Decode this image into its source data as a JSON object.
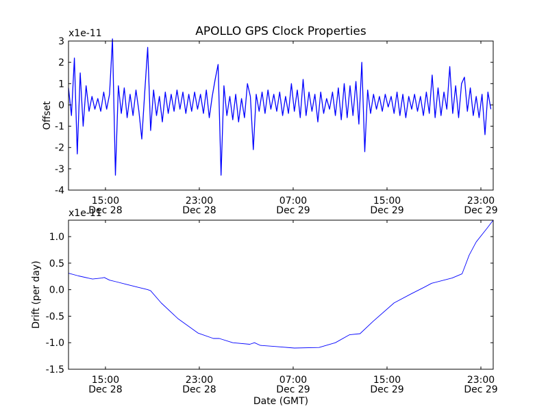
{
  "chart_data": [
    {
      "type": "line",
      "title": "APOLLO GPS Clock Properties",
      "ylabel": "Offset",
      "xlabel": "",
      "y_multiplier_label": "x1e-11",
      "xlim_hours_from_dec28": [
        11.85,
        48.05
      ],
      "ylim": [
        -4,
        3
      ],
      "yticks": [
        -4,
        -3,
        -2,
        -1,
        0,
        1,
        2,
        3
      ],
      "ytick_labels": [
        "-4",
        "-3",
        "-2",
        "-1",
        "0",
        "1",
        "2",
        "3"
      ],
      "xticks_hours": [
        15,
        23,
        31,
        39,
        47
      ],
      "xtick_labels": [
        [
          "15:00",
          "Dec 28"
        ],
        [
          "23:00",
          "Dec 28"
        ],
        [
          "07:00",
          "Dec 29"
        ],
        [
          "15:00",
          "Dec 29"
        ],
        [
          "23:00",
          "Dec 29"
        ]
      ],
      "color": "#0000ff",
      "series": [
        {
          "name": "Offset",
          "x_start_hours": 11.85,
          "x_step_hours": 0.25,
          "values": [
            0.8,
            -0.5,
            2.2,
            -2.3,
            1.5,
            -1.0,
            0.9,
            -0.3,
            0.4,
            -0.2,
            0.3,
            -0.3,
            0.6,
            -0.2,
            0.5,
            3.1,
            -3.3,
            0.9,
            -0.4,
            0.8,
            -0.6,
            0.5,
            -0.5,
            0.7,
            -0.3,
            -1.6,
            0.6,
            2.7,
            -1.2,
            0.7,
            -0.5,
            0.4,
            -0.8,
            0.6,
            -0.4,
            0.5,
            -0.3,
            0.7,
            -0.2,
            0.6,
            -0.4,
            0.5,
            -0.3,
            0.6,
            -0.2,
            0.5,
            -0.4,
            0.7,
            -0.6,
            0.4,
            1.2,
            1.9,
            -3.3,
            0.9,
            -0.5,
            0.4,
            -0.7,
            0.5,
            -0.8,
            0.3,
            -0.6,
            1.0,
            0.4,
            -2.1,
            0.5,
            -0.3,
            0.6,
            -0.4,
            0.7,
            -0.2,
            0.5,
            -0.3,
            0.6,
            -0.5,
            0.4,
            -0.4,
            1.0,
            -0.3,
            0.7,
            -0.6,
            1.2,
            -0.5,
            0.6,
            -0.3,
            0.5,
            -0.8,
            0.6,
            -0.4,
            0.3,
            -0.2,
            0.6,
            -0.5,
            0.8,
            -0.7,
            1.0,
            -0.6,
            0.9,
            -0.5,
            1.1,
            -0.9,
            2.0,
            -2.2,
            0.7,
            -0.4,
            0.5,
            -0.2,
            0.4,
            -0.3,
            0.5,
            -0.1,
            0.4,
            -0.4,
            0.6,
            -0.5,
            0.5,
            -0.6,
            0.4,
            -0.2,
            0.5,
            -0.3,
            0.4,
            -0.5,
            0.6,
            -0.4,
            1.4,
            -0.6,
            0.8,
            -0.5,
            0.6,
            -0.2,
            1.8,
            -0.4,
            0.9,
            -0.6,
            1.0,
            1.3,
            -0.3,
            0.8,
            -0.5,
            0.4,
            -0.6,
            0.5,
            -1.4,
            0.6,
            -0.2
          ]
        }
      ]
    },
    {
      "type": "line",
      "title": "",
      "ylabel": "Drift (per day)",
      "xlabel": "Date (GMT)",
      "y_multiplier_label": "x1e-11",
      "xlim_hours_from_dec28": [
        11.85,
        48.05
      ],
      "ylim": [
        -1.5,
        1.31
      ],
      "yticks": [
        -1.5,
        -1.0,
        -0.5,
        0.0,
        0.5,
        1.0
      ],
      "ytick_labels": [
        "-1.5",
        "-1.0",
        "-0.5",
        "0.0",
        "0.5",
        "1.0"
      ],
      "xticks_hours": [
        15,
        23,
        31,
        39,
        47
      ],
      "xtick_labels": [
        [
          "15:00",
          "Dec 28"
        ],
        [
          "23:00",
          "Dec 28"
        ],
        [
          "07:00",
          "Dec 29"
        ],
        [
          "15:00",
          "Dec 29"
        ],
        [
          "23:00",
          "Dec 29"
        ]
      ],
      "color": "#0000ff",
      "series": [
        {
          "name": "Drift",
          "x_hours": [
            11.85,
            12.7,
            13.9,
            14.7,
            14.9,
            15.35,
            15.9,
            16.8,
            17.7,
            18.6,
            18.85,
            19.75,
            21.2,
            22.9,
            24.2,
            24.7,
            25.85,
            27.3,
            27.7,
            28.2,
            29.35,
            31.1,
            33.2,
            34.6,
            35.8,
            36.7,
            37.8,
            39.6,
            41.05,
            42.2,
            42.8,
            44.55,
            45.4,
            46.0,
            46.6,
            47.5,
            48.05
          ],
          "values": [
            0.31,
            0.26,
            0.2,
            0.22,
            0.23,
            0.18,
            0.15,
            0.1,
            0.05,
            0.0,
            -0.02,
            -0.25,
            -0.55,
            -0.82,
            -0.92,
            -0.92,
            -1.0,
            -1.03,
            -1.0,
            -1.05,
            -1.07,
            -1.1,
            -1.09,
            -1.0,
            -0.85,
            -0.83,
            -0.6,
            -0.25,
            -0.08,
            0.05,
            0.12,
            0.22,
            0.3,
            0.65,
            0.9,
            1.15,
            1.31
          ]
        }
      ]
    }
  ]
}
